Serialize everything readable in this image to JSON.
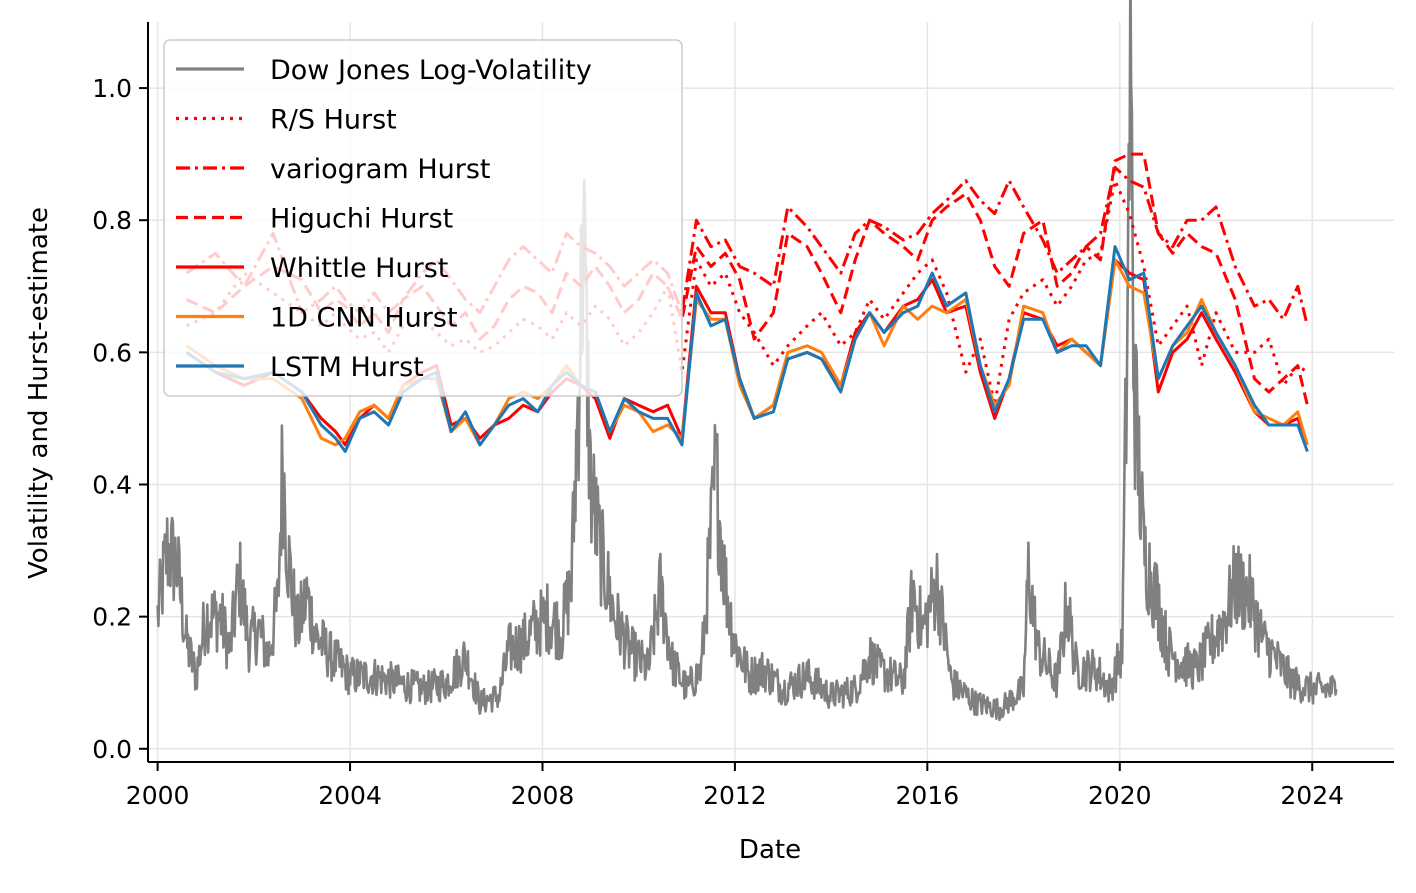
{
  "chart_data": {
    "type": "line",
    "xlabel": "Date",
    "ylabel": "Volatility and Hurst-estimate",
    "xlim": [
      1999.8,
      2025.7
    ],
    "ylim": [
      -0.02,
      1.1
    ],
    "x_ticks": [
      2000,
      2004,
      2008,
      2012,
      2016,
      2020,
      2024
    ],
    "x_tick_labels": [
      "2000",
      "2004",
      "2008",
      "2012",
      "2016",
      "2020",
      "2024"
    ],
    "y_ticks": [
      0.0,
      0.2,
      0.4,
      0.6,
      0.8,
      1.0
    ],
    "y_tick_labels": [
      "0.0",
      "0.2",
      "0.4",
      "0.6",
      "0.8",
      "1.0"
    ],
    "grid": true,
    "legend_position": "top-left",
    "volatility_series": {
      "name": "Dow Jones Log-Volatility",
      "color": "#808080",
      "anchors": [
        [
          2000.0,
          0.2
        ],
        [
          2000.2,
          0.3
        ],
        [
          2000.4,
          0.28
        ],
        [
          2000.6,
          0.16
        ],
        [
          2000.8,
          0.11
        ],
        [
          2001.0,
          0.2
        ],
        [
          2001.3,
          0.2
        ],
        [
          2001.5,
          0.15
        ],
        [
          2001.7,
          0.26
        ],
        [
          2001.9,
          0.16
        ],
        [
          2002.1,
          0.18
        ],
        [
          2002.3,
          0.14
        ],
        [
          2002.5,
          0.22
        ],
        [
          2002.6,
          0.44
        ],
        [
          2002.7,
          0.3
        ],
        [
          2002.9,
          0.18
        ],
        [
          2003.1,
          0.23
        ],
        [
          2003.3,
          0.17
        ],
        [
          2003.6,
          0.14
        ],
        [
          2004.0,
          0.11
        ],
        [
          2004.5,
          0.11
        ],
        [
          2005.0,
          0.1
        ],
        [
          2005.5,
          0.09
        ],
        [
          2006.0,
          0.1
        ],
        [
          2006.4,
          0.14
        ],
        [
          2006.7,
          0.07
        ],
        [
          2007.1,
          0.08
        ],
        [
          2007.3,
          0.15
        ],
        [
          2007.6,
          0.16
        ],
        [
          2007.8,
          0.18
        ],
        [
          2008.1,
          0.2
        ],
        [
          2008.4,
          0.18
        ],
        [
          2008.6,
          0.25
        ],
        [
          2008.75,
          0.55
        ],
        [
          2008.85,
          0.78
        ],
        [
          2009.0,
          0.4
        ],
        [
          2009.2,
          0.3
        ],
        [
          2009.5,
          0.2
        ],
        [
          2009.8,
          0.15
        ],
        [
          2010.2,
          0.12
        ],
        [
          2010.45,
          0.24
        ],
        [
          2010.7,
          0.13
        ],
        [
          2011.0,
          0.09
        ],
        [
          2011.3,
          0.12
        ],
        [
          2011.6,
          0.42
        ],
        [
          2011.8,
          0.25
        ],
        [
          2012.0,
          0.16
        ],
        [
          2012.3,
          0.11
        ],
        [
          2012.6,
          0.12
        ],
        [
          2013.0,
          0.09
        ],
        [
          2013.5,
          0.11
        ],
        [
          2014.0,
          0.08
        ],
        [
          2014.5,
          0.09
        ],
        [
          2014.8,
          0.14
        ],
        [
          2015.0,
          0.12
        ],
        [
          2015.5,
          0.1
        ],
        [
          2015.7,
          0.24
        ],
        [
          2015.9,
          0.18
        ],
        [
          2016.2,
          0.25
        ],
        [
          2016.5,
          0.1
        ],
        [
          2017.0,
          0.07
        ],
        [
          2017.5,
          0.06
        ],
        [
          2018.0,
          0.09
        ],
        [
          2018.1,
          0.27
        ],
        [
          2018.3,
          0.15
        ],
        [
          2018.7,
          0.1
        ],
        [
          2018.9,
          0.22
        ],
        [
          2019.1,
          0.12
        ],
        [
          2019.5,
          0.12
        ],
        [
          2019.8,
          0.09
        ],
        [
          2020.05,
          0.15
        ],
        [
          2020.15,
          0.6
        ],
        [
          2020.22,
          1.04
        ],
        [
          2020.3,
          0.55
        ],
        [
          2020.5,
          0.3
        ],
        [
          2020.8,
          0.22
        ],
        [
          2021.0,
          0.15
        ],
        [
          2021.3,
          0.13
        ],
        [
          2021.6,
          0.12
        ],
        [
          2021.9,
          0.16
        ],
        [
          2022.2,
          0.2
        ],
        [
          2022.4,
          0.25
        ],
        [
          2022.7,
          0.23
        ],
        [
          2023.0,
          0.16
        ],
        [
          2023.3,
          0.13
        ],
        [
          2023.6,
          0.1
        ],
        [
          2024.0,
          0.09
        ],
        [
          2024.5,
          0.09
        ]
      ]
    },
    "hurst_x": [
      2000.6,
      2001.2,
      2001.8,
      2002.4,
      2003.0,
      2003.4,
      2003.7,
      2003.9,
      2004.2,
      2004.5,
      2004.8,
      2005.1,
      2005.5,
      2005.8,
      2006.1,
      2006.4,
      2006.7,
      2007.0,
      2007.3,
      2007.6,
      2007.9,
      2008.2,
      2008.5,
      2008.8,
      2009.1,
      2009.4,
      2009.7,
      2010.0,
      2010.3,
      2010.6,
      2010.9,
      2011.2,
      2011.5,
      2011.8,
      2012.1,
      2012.4,
      2012.8,
      2013.1,
      2013.5,
      2013.8,
      2014.2,
      2014.5,
      2014.8,
      2015.1,
      2015.5,
      2015.8,
      2016.1,
      2016.4,
      2016.8,
      2017.1,
      2017.4,
      2017.7,
      2018.0,
      2018.4,
      2018.7,
      2019.0,
      2019.3,
      2019.6,
      2019.9,
      2020.2,
      2020.5,
      2020.8,
      2021.1,
      2021.4,
      2021.7,
      2022.0,
      2022.4,
      2022.8,
      2023.1,
      2023.4,
      2023.7,
      2023.9
    ],
    "series": [
      {
        "name": "R/S Hurst",
        "color": "#ff0000",
        "dash": "dotted",
        "values": [
          0.64,
          0.66,
          0.72,
          0.69,
          0.66,
          0.64,
          0.66,
          0.64,
          0.62,
          0.63,
          0.6,
          0.64,
          0.65,
          0.63,
          0.61,
          0.62,
          0.6,
          0.61,
          0.63,
          0.65,
          0.64,
          0.62,
          0.66,
          0.64,
          0.67,
          0.65,
          0.61,
          0.63,
          0.66,
          0.7,
          0.57,
          0.74,
          0.7,
          0.72,
          0.66,
          0.63,
          0.58,
          0.61,
          0.64,
          0.66,
          0.61,
          0.63,
          0.68,
          0.65,
          0.69,
          0.72,
          0.74,
          0.69,
          0.57,
          0.62,
          0.52,
          0.65,
          0.69,
          0.71,
          0.67,
          0.7,
          0.74,
          0.75,
          0.86,
          0.81,
          0.73,
          0.61,
          0.64,
          0.67,
          0.58,
          0.66,
          0.6,
          0.6,
          0.62,
          0.55,
          0.58,
          0.57
        ]
      },
      {
        "name": "variogram Hurst",
        "color": "#ff0000",
        "dash": "dashdot",
        "values": [
          0.72,
          0.75,
          0.7,
          0.78,
          0.66,
          0.68,
          0.7,
          0.68,
          0.66,
          0.69,
          0.66,
          0.68,
          0.72,
          0.74,
          0.71,
          0.68,
          0.66,
          0.7,
          0.74,
          0.76,
          0.74,
          0.72,
          0.78,
          0.76,
          0.75,
          0.73,
          0.7,
          0.72,
          0.74,
          0.72,
          0.66,
          0.8,
          0.76,
          0.77,
          0.73,
          0.72,
          0.7,
          0.82,
          0.79,
          0.76,
          0.72,
          0.78,
          0.8,
          0.79,
          0.77,
          0.78,
          0.81,
          0.83,
          0.86,
          0.83,
          0.81,
          0.86,
          0.82,
          0.77,
          0.72,
          0.74,
          0.76,
          0.78,
          0.88,
          0.86,
          0.85,
          0.78,
          0.76,
          0.8,
          0.8,
          0.82,
          0.73,
          0.67,
          0.68,
          0.65,
          0.7,
          0.64
        ]
      },
      {
        "name": "Higuchi Hurst",
        "color": "#ff0000",
        "dash": "dashed",
        "values": [
          0.68,
          0.66,
          0.7,
          0.73,
          0.71,
          0.66,
          0.68,
          0.67,
          0.64,
          0.66,
          0.63,
          0.68,
          0.7,
          0.67,
          0.64,
          0.66,
          0.62,
          0.64,
          0.68,
          0.7,
          0.69,
          0.66,
          0.72,
          0.7,
          0.73,
          0.7,
          0.66,
          0.68,
          0.72,
          0.7,
          0.65,
          0.76,
          0.73,
          0.75,
          0.71,
          0.62,
          0.66,
          0.78,
          0.76,
          0.72,
          0.66,
          0.74,
          0.8,
          0.78,
          0.76,
          0.74,
          0.8,
          0.82,
          0.84,
          0.8,
          0.73,
          0.7,
          0.78,
          0.8,
          0.7,
          0.72,
          0.76,
          0.74,
          0.89,
          0.9,
          0.9,
          0.78,
          0.75,
          0.78,
          0.76,
          0.75,
          0.68,
          0.56,
          0.54,
          0.56,
          0.58,
          0.52
        ]
      },
      {
        "name": "Whittle Hurst",
        "color": "#ff0000",
        "dash": "solid",
        "values": [
          0.6,
          0.57,
          0.55,
          0.57,
          0.54,
          0.5,
          0.48,
          0.46,
          0.5,
          0.52,
          0.5,
          0.55,
          0.57,
          0.58,
          0.49,
          0.5,
          0.47,
          0.49,
          0.5,
          0.52,
          0.51,
          0.54,
          0.56,
          0.55,
          0.53,
          0.47,
          0.53,
          0.52,
          0.51,
          0.52,
          0.47,
          0.7,
          0.66,
          0.66,
          0.56,
          0.5,
          0.52,
          0.59,
          0.6,
          0.59,
          0.55,
          0.63,
          0.66,
          0.63,
          0.67,
          0.68,
          0.71,
          0.66,
          0.67,
          0.57,
          0.5,
          0.56,
          0.66,
          0.65,
          0.61,
          0.62,
          0.6,
          0.58,
          0.74,
          0.72,
          0.71,
          0.54,
          0.6,
          0.62,
          0.66,
          0.62,
          0.57,
          0.51,
          0.49,
          0.49,
          0.5,
          0.46
        ]
      },
      {
        "name": "1D CNN Hurst",
        "color": "#ff7f0e",
        "dash": "solid",
        "values": [
          0.61,
          0.58,
          0.56,
          0.56,
          0.53,
          0.47,
          0.46,
          0.47,
          0.51,
          0.52,
          0.5,
          0.55,
          0.56,
          0.56,
          0.48,
          0.5,
          0.46,
          0.49,
          0.53,
          0.54,
          0.53,
          0.55,
          0.58,
          0.55,
          0.54,
          0.48,
          0.52,
          0.51,
          0.48,
          0.49,
          0.47,
          0.68,
          0.65,
          0.65,
          0.55,
          0.5,
          0.52,
          0.6,
          0.61,
          0.6,
          0.55,
          0.62,
          0.66,
          0.61,
          0.67,
          0.65,
          0.67,
          0.66,
          0.68,
          0.58,
          0.52,
          0.55,
          0.67,
          0.66,
          0.6,
          0.62,
          0.6,
          0.58,
          0.74,
          0.7,
          0.69,
          0.56,
          0.61,
          0.63,
          0.68,
          0.63,
          0.58,
          0.51,
          0.5,
          0.49,
          0.51,
          0.46
        ]
      },
      {
        "name": "LSTM Hurst",
        "color": "#1f77b4",
        "dash": "solid",
        "values": [
          0.6,
          0.57,
          0.56,
          0.57,
          0.54,
          0.49,
          0.47,
          0.45,
          0.5,
          0.51,
          0.49,
          0.54,
          0.56,
          0.57,
          0.48,
          0.51,
          0.46,
          0.49,
          0.52,
          0.53,
          0.51,
          0.55,
          0.57,
          0.55,
          0.54,
          0.48,
          0.53,
          0.51,
          0.5,
          0.5,
          0.46,
          0.69,
          0.64,
          0.65,
          0.56,
          0.5,
          0.51,
          0.59,
          0.6,
          0.59,
          0.54,
          0.62,
          0.66,
          0.63,
          0.66,
          0.67,
          0.72,
          0.67,
          0.69,
          0.58,
          0.51,
          0.56,
          0.65,
          0.65,
          0.6,
          0.61,
          0.61,
          0.58,
          0.76,
          0.71,
          0.72,
          0.56,
          0.61,
          0.64,
          0.67,
          0.63,
          0.58,
          0.52,
          0.49,
          0.49,
          0.49,
          0.45
        ]
      }
    ],
    "legend": [
      {
        "label": "Dow Jones Log-Volatility",
        "color": "#808080",
        "dash": "solid"
      },
      {
        "label": "R/S Hurst",
        "color": "#ff0000",
        "dash": "dotted"
      },
      {
        "label": "variogram Hurst",
        "color": "#ff0000",
        "dash": "dashdot"
      },
      {
        "label": "Higuchi Hurst",
        "color": "#ff0000",
        "dash": "dashed"
      },
      {
        "label": "Whittle Hurst",
        "color": "#ff0000",
        "dash": "solid"
      },
      {
        "label": "1D CNN Hurst",
        "color": "#ff7f0e",
        "dash": "solid"
      },
      {
        "label": "LSTM Hurst",
        "color": "#1f77b4",
        "dash": "solid"
      }
    ]
  }
}
